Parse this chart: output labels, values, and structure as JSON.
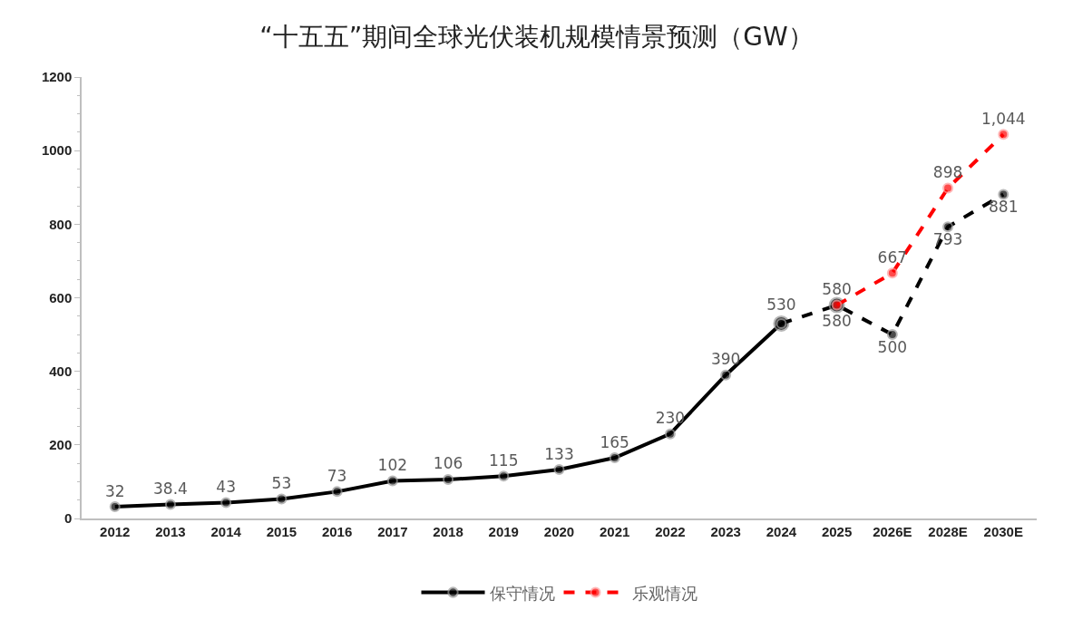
{
  "chart_data": {
    "type": "line",
    "title": "“十五五”期间全球光伏装机规模情景预测（GW）",
    "categories": [
      "2012",
      "2013",
      "2014",
      "2015",
      "2016",
      "2017",
      "2018",
      "2019",
      "2020",
      "2021",
      "2022",
      "2023",
      "2024",
      "2025",
      "2026E",
      "2028E",
      "2030E"
    ],
    "series": [
      {
        "name": "保守情况",
        "color": "#000000",
        "line_style": "solid",
        "values": [
          32,
          38.4,
          43,
          53,
          73,
          102,
          106,
          115,
          133,
          165,
          230,
          390,
          530,
          null,
          null,
          null,
          null
        ],
        "value_labels": [
          "32",
          "38.4",
          "43",
          "53",
          "73",
          "102",
          "106",
          "115",
          "133",
          "165",
          "230",
          "390",
          "530",
          null,
          null,
          null,
          null
        ]
      },
      {
        "color": "#000000",
        "line_style": "dashed",
        "values": [
          null,
          null,
          null,
          null,
          null,
          null,
          null,
          null,
          null,
          null,
          null,
          null,
          530,
          580,
          500,
          793,
          881
        ],
        "value_labels": [
          null,
          null,
          null,
          null,
          null,
          null,
          null,
          null,
          null,
          null,
          null,
          null,
          null,
          "580",
          "500",
          "793",
          "881"
        ]
      },
      {
        "name": "乐观情况",
        "color": "#ff0000",
        "line_style": "dashed",
        "values": [
          null,
          null,
          null,
          null,
          null,
          null,
          null,
          null,
          null,
          null,
          null,
          null,
          null,
          580,
          667,
          898,
          1044
        ],
        "value_labels": [
          null,
          null,
          null,
          null,
          null,
          null,
          null,
          null,
          null,
          null,
          null,
          null,
          null,
          "580",
          "667",
          "898",
          "1,044"
        ]
      }
    ],
    "ylim": [
      0,
      1200
    ],
    "yticks": [
      0,
      200,
      400,
      600,
      800,
      1000,
      1200
    ],
    "grid": false,
    "legend": "bottom",
    "marker": "circle"
  }
}
